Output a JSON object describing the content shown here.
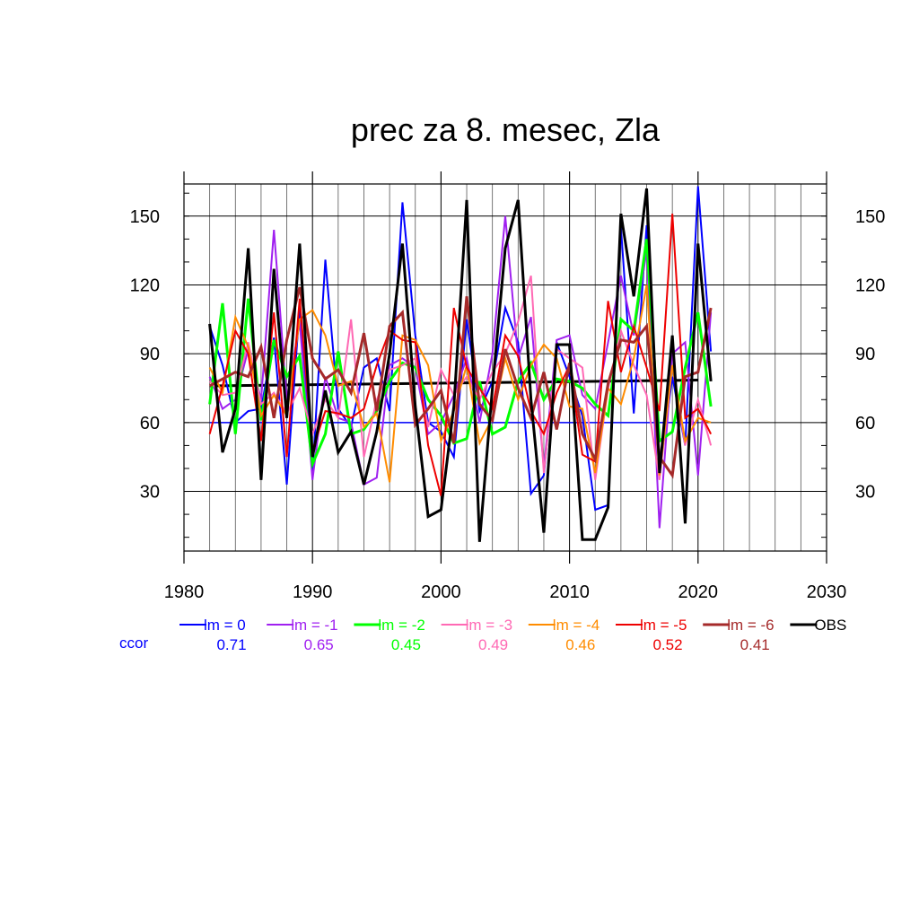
{
  "chart_data": {
    "type": "line",
    "title": "prec za 8. mesec, Zla",
    "xlabel": "",
    "ylabel": "",
    "xlim": [
      1980,
      2030
    ],
    "ylim": [
      4,
      164
    ],
    "x_ticks": [
      1980,
      1990,
      2000,
      2010,
      2020,
      2030
    ],
    "y_ticks": [
      30,
      60,
      90,
      120,
      150
    ],
    "grid": true,
    "legend_placement": "bottom",
    "x": [
      1982,
      1983,
      1984,
      1985,
      1986,
      1987,
      1988,
      1989,
      1990,
      1991,
      1992,
      1993,
      1994,
      1995,
      1996,
      1997,
      1998,
      1999,
      2000,
      2001,
      2002,
      2003,
      2004,
      2005,
      2006,
      2007,
      2008,
      2009,
      2010,
      2011,
      2012,
      2013,
      2014,
      2015,
      2016,
      2017,
      2018,
      2019,
      2020,
      2021
    ],
    "series": [
      {
        "name": "lm = 0",
        "color": "#0000ff",
        "width": 2,
        "values": [
          102,
          85,
          60,
          65,
          66,
          97,
          33,
          110,
          38,
          131,
          66,
          58,
          84,
          88,
          65,
          156,
          98,
          60,
          56,
          45,
          105,
          65,
          78,
          110,
          95,
          29,
          37,
          95,
          80,
          63,
          22,
          24,
          145,
          64,
          146,
          38,
          80,
          50,
          163,
          91
        ]
      },
      {
        "name": "lm = -1",
        "color": "#a020f0",
        "width": 2,
        "values": [
          80,
          66,
          70,
          92,
          70,
          144,
          70,
          104,
          35,
          80,
          62,
          60,
          33,
          36,
          85,
          88,
          84,
          55,
          60,
          72,
          88,
          60,
          90,
          150,
          88,
          106,
          40,
          96,
          98,
          72,
          66,
          95,
          124,
          98,
          135,
          14,
          90,
          95,
          37,
          108
        ]
      },
      {
        "name": "lm = -2",
        "color": "#00ff00",
        "width": 3,
        "values": [
          68,
          112,
          55,
          114,
          61,
          96,
          80,
          89,
          42,
          55,
          91,
          55,
          57,
          65,
          78,
          86,
          84,
          70,
          63,
          51,
          53,
          78,
          55,
          58,
          78,
          86,
          70,
          79,
          78,
          75,
          68,
          63,
          105,
          100,
          140,
          52,
          56,
          84,
          108,
          67
        ]
      },
      {
        "name": "lm = -3",
        "color": "#ff69b4",
        "width": 2,
        "values": [
          78,
          72,
          73,
          95,
          68,
          73,
          64,
          75,
          55,
          70,
          62,
          105,
          45,
          70,
          83,
          85,
          88,
          58,
          83,
          72,
          80,
          70,
          82,
          90,
          104,
          124,
          38,
          92,
          88,
          84,
          35,
          75,
          100,
          85,
          72,
          35,
          85,
          50,
          70,
          50
        ]
      },
      {
        "name": "lm = -4",
        "color": "#ff8c00",
        "width": 2,
        "values": [
          84,
          73,
          106,
          93,
          63,
          72,
          63,
          105,
          109,
          98,
          76,
          78,
          58,
          64,
          34,
          98,
          96,
          85,
          52,
          65,
          85,
          51,
          62,
          88,
          70,
          85,
          94,
          88,
          67,
          66,
          38,
          75,
          68,
          88,
          120,
          37,
          85,
          52,
          62,
          60
        ]
      },
      {
        "name": "lm = -5",
        "color": "#ee0000",
        "width": 2,
        "values": [
          55,
          76,
          100,
          90,
          52,
          108,
          45,
          114,
          48,
          65,
          64,
          62,
          66,
          85,
          100,
          96,
          95,
          50,
          28,
          110,
          84,
          75,
          66,
          98,
          89,
          65,
          55,
          73,
          85,
          46,
          43,
          113,
          82,
          102,
          84,
          65,
          151,
          62,
          66,
          55
        ]
      },
      {
        "name": "lm = -6",
        "color": "#a52a2a",
        "width": 3,
        "values": [
          76,
          79,
          82,
          80,
          93,
          62,
          96,
          119,
          88,
          79,
          83,
          73,
          99,
          65,
          102,
          108,
          59,
          66,
          74,
          51,
          115,
          68,
          61,
          92,
          75,
          62,
          82,
          57,
          86,
          55,
          44,
          77,
          96,
          95,
          102,
          45,
          37,
          80,
          82,
          110
        ]
      },
      {
        "name": "OBS",
        "color": "#000000",
        "width": 3,
        "values": [
          103,
          47,
          66,
          136,
          35,
          127,
          62,
          138,
          45,
          74,
          47,
          56,
          33,
          56,
          90,
          138,
          67,
          19,
          22,
          67,
          157,
          8,
          75,
          136,
          157,
          70,
          12,
          94,
          94,
          9,
          9,
          23,
          151,
          115,
          162,
          38,
          98,
          16,
          138,
          78
        ]
      }
    ],
    "reference_lines": [
      {
        "series": "lm = 0",
        "color": "#0000ff",
        "x": [
          1982,
          2020
        ],
        "y": [
          60,
          60
        ]
      },
      {
        "series": "OBS",
        "color": "#000000",
        "x": [
          1982,
          2020
        ],
        "y": [
          76,
          78.5
        ]
      }
    ],
    "ccor": {
      "label": "ccor",
      "label_color": "#0000ff",
      "values": [
        "0.71",
        "0.65",
        "0.45",
        "0.49",
        "0.46",
        "0.52",
        "0.41"
      ]
    }
  }
}
